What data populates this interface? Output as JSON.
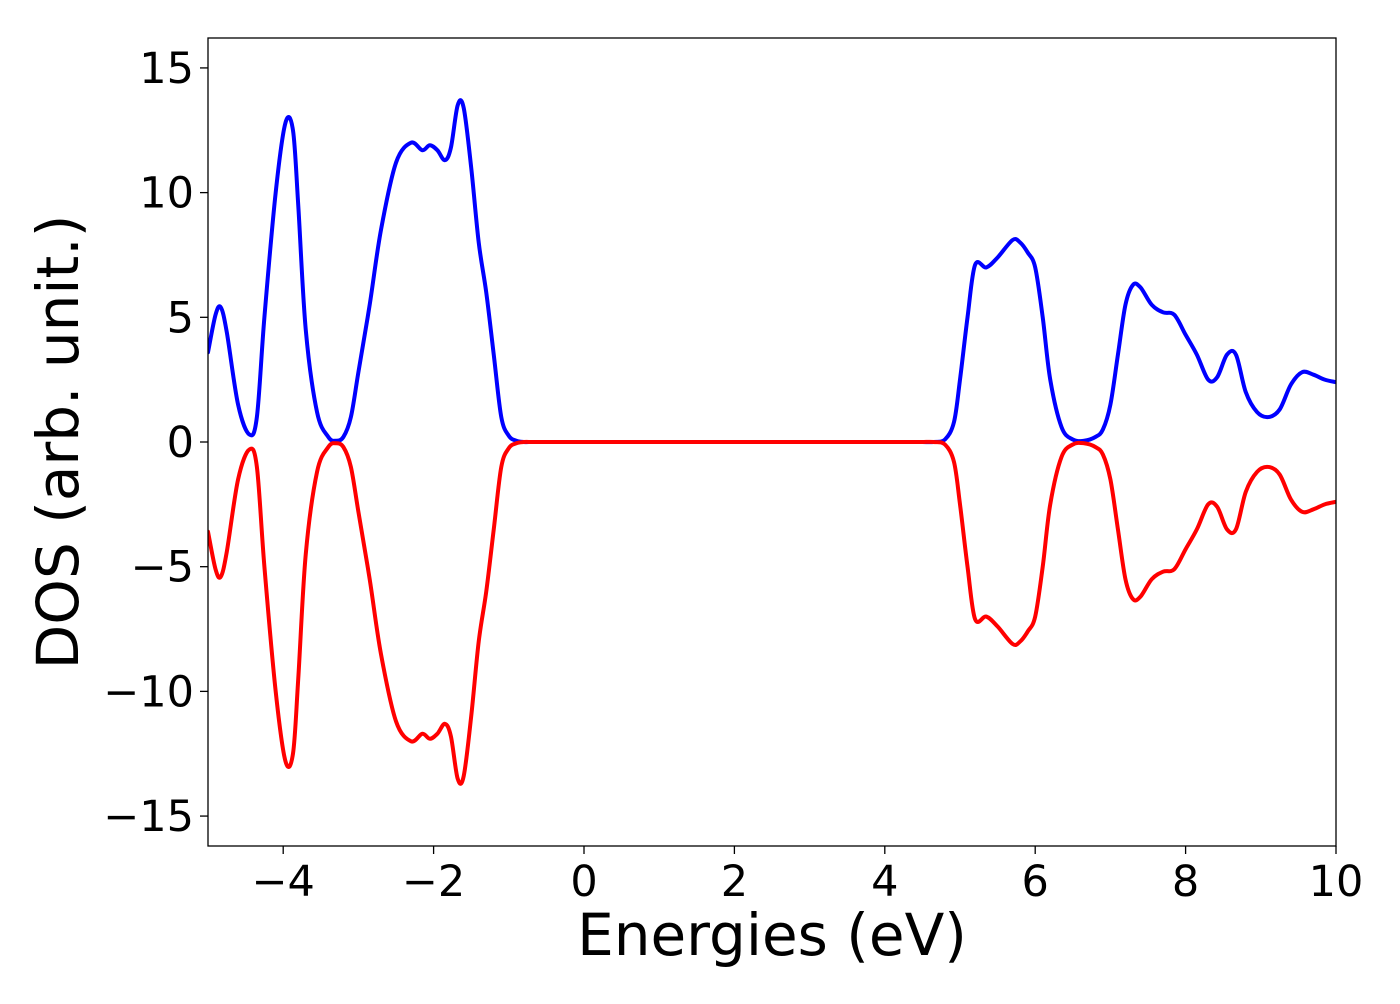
{
  "chart_data": {
    "type": "line",
    "title": "",
    "xlabel": "Energies (eV)",
    "ylabel": "DOS (arb. unit.)",
    "xlim": [
      -5,
      10
    ],
    "ylim": [
      -16.2,
      16.2
    ],
    "x_ticks": [
      -4,
      -2,
      0,
      2,
      4,
      6,
      8,
      10
    ],
    "x_tick_labels": [
      "−4",
      "−2",
      "0",
      "2",
      "4",
      "6",
      "8",
      "10"
    ],
    "y_ticks": [
      -15,
      -10,
      -5,
      0,
      5,
      10,
      15
    ],
    "y_tick_labels": [
      "−15",
      "−10",
      "−5",
      "0",
      "5",
      "10",
      "15"
    ],
    "grid": false,
    "legend": "none",
    "series": [
      {
        "color": "#0000ff",
        "x": [
          -5.0,
          -4.9,
          -4.83,
          -4.75,
          -4.6,
          -4.45,
          -4.35,
          -4.25,
          -4.1,
          -3.97,
          -3.87,
          -3.8,
          -3.7,
          -3.55,
          -3.4,
          -3.3,
          -3.2,
          -3.1,
          -3.0,
          -2.85,
          -2.7,
          -2.5,
          -2.3,
          -2.15,
          -2.05,
          -1.95,
          -1.85,
          -1.77,
          -1.68,
          -1.6,
          -1.5,
          -1.4,
          -1.3,
          -1.2,
          -1.1,
          -1.0,
          -0.9,
          -0.8,
          -0.7,
          -0.6,
          -0.5,
          0.0,
          1.0,
          2.0,
          3.0,
          4.0,
          4.2,
          4.35,
          4.5,
          4.65,
          4.8,
          4.92,
          5.0,
          5.1,
          5.2,
          5.35,
          5.5,
          5.7,
          5.8,
          5.9,
          6.0,
          6.1,
          6.2,
          6.35,
          6.5,
          6.65,
          6.8,
          6.9,
          7.0,
          7.1,
          7.2,
          7.3,
          7.4,
          7.55,
          7.7,
          7.85,
          8.0,
          8.15,
          8.3,
          8.42,
          8.55,
          8.67,
          8.8,
          8.95,
          9.1,
          9.25,
          9.4,
          9.55,
          9.7,
          9.85,
          10.0
        ],
        "y": [
          3.6,
          5.1,
          5.4,
          4.4,
          1.5,
          0.3,
          1.0,
          5.0,
          10.0,
          12.8,
          12.5,
          9.5,
          4.5,
          1.2,
          0.2,
          0.05,
          0.2,
          1.0,
          2.8,
          5.5,
          8.5,
          11.2,
          12.0,
          11.7,
          11.9,
          11.7,
          11.3,
          11.8,
          13.5,
          13.4,
          11.0,
          8.0,
          6.0,
          3.5,
          1.0,
          0.25,
          0.05,
          0.0,
          0.0,
          0.0,
          0.0,
          0.0,
          0.0,
          0.0,
          0.0,
          0.0,
          0.0,
          0.0,
          0.0,
          0.0,
          0.1,
          0.8,
          2.5,
          5.0,
          7.1,
          7.0,
          7.4,
          8.1,
          8.0,
          7.6,
          7.0,
          5.0,
          2.5,
          0.6,
          0.1,
          0.05,
          0.2,
          0.5,
          1.5,
          3.5,
          5.5,
          6.3,
          6.2,
          5.5,
          5.2,
          5.1,
          4.3,
          3.5,
          2.5,
          2.6,
          3.5,
          3.5,
          2.0,
          1.2,
          1.0,
          1.3,
          2.3,
          2.8,
          2.7,
          2.5,
          2.4
        ]
      },
      {
        "color": "#ff0000",
        "x": [
          -5.0,
          -4.9,
          -4.83,
          -4.75,
          -4.6,
          -4.45,
          -4.35,
          -4.25,
          -4.1,
          -3.97,
          -3.87,
          -3.8,
          -3.7,
          -3.55,
          -3.4,
          -3.3,
          -3.2,
          -3.1,
          -3.0,
          -2.85,
          -2.7,
          -2.5,
          -2.3,
          -2.15,
          -2.05,
          -1.95,
          -1.85,
          -1.77,
          -1.68,
          -1.6,
          -1.5,
          -1.4,
          -1.3,
          -1.2,
          -1.1,
          -1.0,
          -0.9,
          -0.8,
          -0.7,
          -0.6,
          -0.5,
          0.0,
          1.0,
          2.0,
          3.0,
          4.0,
          4.2,
          4.35,
          4.5,
          4.65,
          4.8,
          4.92,
          5.0,
          5.1,
          5.2,
          5.35,
          5.5,
          5.7,
          5.8,
          5.9,
          6.0,
          6.1,
          6.2,
          6.35,
          6.5,
          6.65,
          6.8,
          6.9,
          7.0,
          7.1,
          7.2,
          7.3,
          7.4,
          7.55,
          7.7,
          7.85,
          8.0,
          8.15,
          8.3,
          8.42,
          8.55,
          8.67,
          8.8,
          8.95,
          9.1,
          9.25,
          9.4,
          9.55,
          9.7,
          9.85,
          10.0
        ],
        "y": [
          -3.6,
          -5.1,
          -5.4,
          -4.4,
          -1.5,
          -0.3,
          -1.0,
          -5.0,
          -10.0,
          -12.8,
          -12.5,
          -9.5,
          -4.5,
          -1.2,
          -0.2,
          -0.05,
          -0.2,
          -1.0,
          -2.8,
          -5.5,
          -8.5,
          -11.2,
          -12.0,
          -11.7,
          -11.9,
          -11.7,
          -11.3,
          -11.8,
          -13.5,
          -13.4,
          -11.0,
          -8.0,
          -6.0,
          -3.5,
          -1.0,
          -0.25,
          -0.05,
          0.0,
          0.0,
          0.0,
          0.0,
          0.0,
          0.0,
          0.0,
          0.0,
          0.0,
          0.0,
          0.0,
          0.0,
          0.0,
          -0.1,
          -0.8,
          -2.5,
          -5.0,
          -7.1,
          -7.0,
          -7.4,
          -8.1,
          -8.0,
          -7.6,
          -7.0,
          -5.0,
          -2.5,
          -0.6,
          -0.1,
          -0.05,
          -0.2,
          -0.5,
          -1.5,
          -3.5,
          -5.5,
          -6.3,
          -6.2,
          -5.5,
          -5.2,
          -5.1,
          -4.3,
          -3.5,
          -2.5,
          -2.6,
          -3.5,
          -3.5,
          -2.0,
          -1.2,
          -1.0,
          -1.3,
          -2.3,
          -2.8,
          -2.7,
          -2.5,
          -2.4
        ]
      }
    ]
  }
}
